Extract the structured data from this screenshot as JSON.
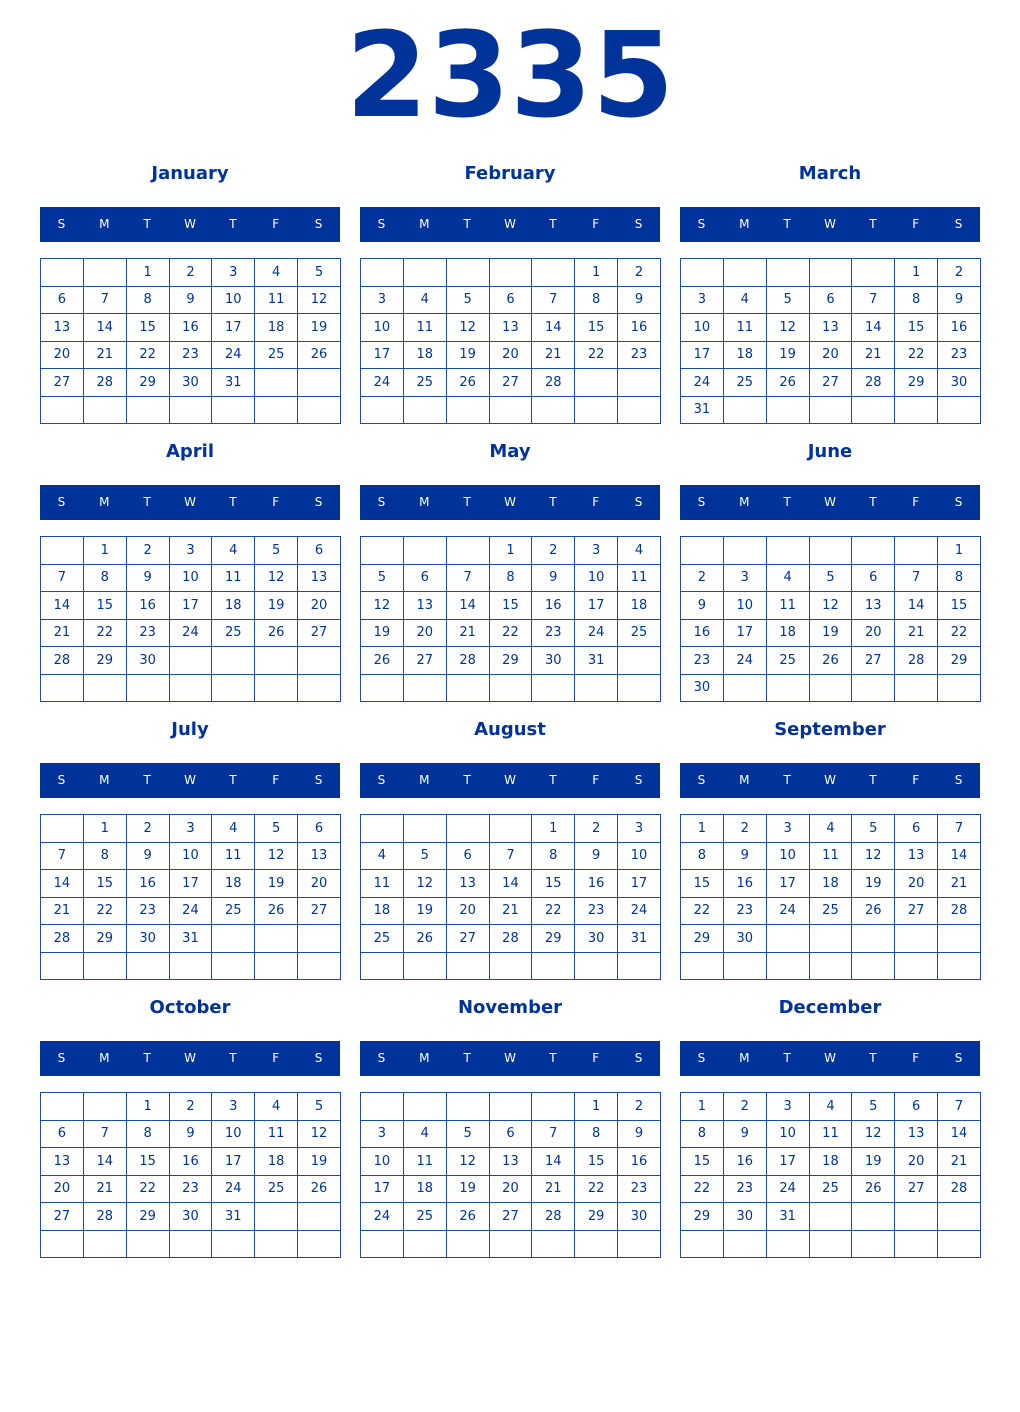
{
  "year": "2335",
  "weekdays": [
    "S",
    "M",
    "T",
    "W",
    "T",
    "F",
    "S"
  ],
  "months": [
    {
      "name": "January",
      "weeks": [
        [
          "",
          "",
          "1",
          "2",
          "3",
          "4",
          "5"
        ],
        [
          "6",
          "7",
          "8",
          "9",
          "10",
          "11",
          "12"
        ],
        [
          "13",
          "14",
          "15",
          "16",
          "17",
          "18",
          "19"
        ],
        [
          "20",
          "21",
          "22",
          "23",
          "24",
          "25",
          "26"
        ],
        [
          "27",
          "28",
          "29",
          "30",
          "31",
          "",
          ""
        ],
        [
          "",
          "",
          "",
          "",
          "",
          "",
          ""
        ]
      ]
    },
    {
      "name": "February",
      "weeks": [
        [
          "",
          "",
          "",
          "",
          "",
          "1",
          "2"
        ],
        [
          "3",
          "4",
          "5",
          "6",
          "7",
          "8",
          "9"
        ],
        [
          "10",
          "11",
          "12",
          "13",
          "14",
          "15",
          "16"
        ],
        [
          "17",
          "18",
          "19",
          "20",
          "21",
          "22",
          "23"
        ],
        [
          "24",
          "25",
          "26",
          "27",
          "28",
          "",
          ""
        ],
        [
          "",
          "",
          "",
          "",
          "",
          "",
          ""
        ]
      ]
    },
    {
      "name": "March",
      "weeks": [
        [
          "",
          "",
          "",
          "",
          "",
          "1",
          "2"
        ],
        [
          "3",
          "4",
          "5",
          "6",
          "7",
          "8",
          "9"
        ],
        [
          "10",
          "11",
          "12",
          "13",
          "14",
          "15",
          "16"
        ],
        [
          "17",
          "18",
          "19",
          "20",
          "21",
          "22",
          "23"
        ],
        [
          "24",
          "25",
          "26",
          "27",
          "28",
          "29",
          "30"
        ],
        [
          "31",
          "",
          "",
          "",
          "",
          "",
          ""
        ]
      ]
    },
    {
      "name": "April",
      "weeks": [
        [
          "",
          "1",
          "2",
          "3",
          "4",
          "5",
          "6"
        ],
        [
          "7",
          "8",
          "9",
          "10",
          "11",
          "12",
          "13"
        ],
        [
          "14",
          "15",
          "16",
          "17",
          "18",
          "19",
          "20"
        ],
        [
          "21",
          "22",
          "23",
          "24",
          "25",
          "26",
          "27"
        ],
        [
          "28",
          "29",
          "30",
          "",
          "",
          "",
          ""
        ],
        [
          "",
          "",
          "",
          "",
          "",
          "",
          ""
        ]
      ]
    },
    {
      "name": "May",
      "weeks": [
        [
          "",
          "",
          "",
          "1",
          "2",
          "3",
          "4"
        ],
        [
          "5",
          "6",
          "7",
          "8",
          "9",
          "10",
          "11"
        ],
        [
          "12",
          "13",
          "14",
          "15",
          "16",
          "17",
          "18"
        ],
        [
          "19",
          "20",
          "21",
          "22",
          "23",
          "24",
          "25"
        ],
        [
          "26",
          "27",
          "28",
          "29",
          "30",
          "31",
          ""
        ],
        [
          "",
          "",
          "",
          "",
          "",
          "",
          ""
        ]
      ]
    },
    {
      "name": "June",
      "weeks": [
        [
          "",
          "",
          "",
          "",
          "",
          "",
          "1"
        ],
        [
          "2",
          "3",
          "4",
          "5",
          "6",
          "7",
          "8"
        ],
        [
          "9",
          "10",
          "11",
          "12",
          "13",
          "14",
          "15"
        ],
        [
          "16",
          "17",
          "18",
          "19",
          "20",
          "21",
          "22"
        ],
        [
          "23",
          "24",
          "25",
          "26",
          "27",
          "28",
          "29"
        ],
        [
          "30",
          "",
          "",
          "",
          "",
          "",
          ""
        ]
      ]
    },
    {
      "name": "July",
      "weeks": [
        [
          "",
          "1",
          "2",
          "3",
          "4",
          "5",
          "6"
        ],
        [
          "7",
          "8",
          "9",
          "10",
          "11",
          "12",
          "13"
        ],
        [
          "14",
          "15",
          "16",
          "17",
          "18",
          "19",
          "20"
        ],
        [
          "21",
          "22",
          "23",
          "24",
          "25",
          "26",
          "27"
        ],
        [
          "28",
          "29",
          "30",
          "31",
          "",
          "",
          ""
        ],
        [
          "",
          "",
          "",
          "",
          "",
          "",
          ""
        ]
      ]
    },
    {
      "name": "August",
      "weeks": [
        [
          "",
          "",
          "",
          "",
          "1",
          "2",
          "3"
        ],
        [
          "4",
          "5",
          "6",
          "7",
          "8",
          "9",
          "10"
        ],
        [
          "11",
          "12",
          "13",
          "14",
          "15",
          "16",
          "17"
        ],
        [
          "18",
          "19",
          "20",
          "21",
          "22",
          "23",
          "24"
        ],
        [
          "25",
          "26",
          "27",
          "28",
          "29",
          "30",
          "31"
        ],
        [
          "",
          "",
          "",
          "",
          "",
          "",
          ""
        ]
      ]
    },
    {
      "name": "September",
      "weeks": [
        [
          "1",
          "2",
          "3",
          "4",
          "5",
          "6",
          "7"
        ],
        [
          "8",
          "9",
          "10",
          "11",
          "12",
          "13",
          "14"
        ],
        [
          "15",
          "16",
          "17",
          "18",
          "19",
          "20",
          "21"
        ],
        [
          "22",
          "23",
          "24",
          "25",
          "26",
          "27",
          "28"
        ],
        [
          "29",
          "30",
          "",
          "",
          "",
          "",
          ""
        ],
        [
          "",
          "",
          "",
          "",
          "",
          "",
          ""
        ]
      ]
    },
    {
      "name": "October",
      "weeks": [
        [
          "",
          "",
          "1",
          "2",
          "3",
          "4",
          "5"
        ],
        [
          "6",
          "7",
          "8",
          "9",
          "10",
          "11",
          "12"
        ],
        [
          "13",
          "14",
          "15",
          "16",
          "17",
          "18",
          "19"
        ],
        [
          "20",
          "21",
          "22",
          "23",
          "24",
          "25",
          "26"
        ],
        [
          "27",
          "28",
          "29",
          "30",
          "31",
          "",
          ""
        ],
        [
          "",
          "",
          "",
          "",
          "",
          "",
          ""
        ]
      ]
    },
    {
      "name": "November",
      "weeks": [
        [
          "",
          "",
          "",
          "",
          "",
          "1",
          "2"
        ],
        [
          "3",
          "4",
          "5",
          "6",
          "7",
          "8",
          "9"
        ],
        [
          "10",
          "11",
          "12",
          "13",
          "14",
          "15",
          "16"
        ],
        [
          "17",
          "18",
          "19",
          "20",
          "21",
          "22",
          "23"
        ],
        [
          "24",
          "25",
          "26",
          "27",
          "28",
          "29",
          "30"
        ],
        [
          "",
          "",
          "",
          "",
          "",
          "",
          ""
        ]
      ]
    },
    {
      "name": "December",
      "weeks": [
        [
          "1",
          "2",
          "3",
          "4",
          "5",
          "6",
          "7"
        ],
        [
          "8",
          "9",
          "10",
          "11",
          "12",
          "13",
          "14"
        ],
        [
          "15",
          "16",
          "17",
          "18",
          "19",
          "20",
          "21"
        ],
        [
          "22",
          "23",
          "24",
          "25",
          "26",
          "27",
          "28"
        ],
        [
          "29",
          "30",
          "31",
          "",
          "",
          "",
          ""
        ],
        [
          "",
          "",
          "",
          "",
          "",
          "",
          ""
        ]
      ]
    }
  ]
}
